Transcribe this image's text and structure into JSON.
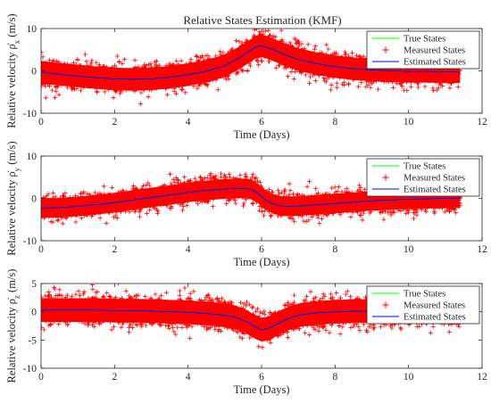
{
  "figure_title": "Relative States Estimation (KMF)",
  "chart_data": [
    {
      "type": "line",
      "title": "Relative States Estimation (KMF)",
      "xlabel": "Time (Days)",
      "ylabel_prefix": "Relative velocity ",
      "ylabel_symbol": "ρ̇",
      "ylabel_sub": "x",
      "ylabel_suffix": " (m/s)",
      "xlim": [
        0,
        12
      ],
      "ylim": [
        -10,
        10
      ],
      "xticks": [
        0,
        2,
        4,
        6,
        8,
        10,
        12
      ],
      "yticks": [
        -10,
        0,
        10
      ],
      "grid": false,
      "legend_position": "top-right",
      "noise_halfwidth": 3.8,
      "x_range": [
        0,
        11.4
      ],
      "series": [
        {
          "name": "True States",
          "color": "#00ff00",
          "style": "line"
        },
        {
          "name": "Measured States",
          "color": "#ff0000",
          "style": "plus-markers"
        },
        {
          "name": "Estimated States",
          "color": "#0000ff",
          "style": "line",
          "x": [
            0,
            0.5,
            1,
            1.5,
            2,
            2.5,
            3,
            3.5,
            4,
            4.5,
            5,
            5.3,
            5.6,
            5.8,
            5.95,
            6.1,
            6.4,
            6.7,
            7,
            7.5,
            8,
            8.5,
            9,
            9.5,
            10,
            10.5,
            11,
            11.4
          ],
          "y": [
            -0.3,
            -0.8,
            -1.2,
            -1.6,
            -1.9,
            -2.0,
            -1.9,
            -1.5,
            -0.9,
            -0.1,
            1.2,
            2.6,
            4.2,
            5.4,
            6.0,
            5.7,
            4.7,
            3.6,
            2.7,
            1.7,
            1.0,
            0.5,
            0.2,
            0.0,
            -0.1,
            -0.1,
            -0.2,
            -0.2
          ]
        }
      ]
    },
    {
      "type": "line",
      "xlabel": "Time (Days)",
      "ylabel_prefix": "Relative velocity ",
      "ylabel_symbol": "ρ̇",
      "ylabel_sub": "y",
      "ylabel_suffix": " (m/s)",
      "xlim": [
        0,
        12
      ],
      "ylim": [
        -10,
        10
      ],
      "xticks": [
        0,
        2,
        4,
        6,
        8,
        10,
        12
      ],
      "yticks": [
        -10,
        0,
        10
      ],
      "grid": false,
      "legend_position": "top-right",
      "noise_halfwidth": 3.3,
      "x_range": [
        0,
        11.4
      ],
      "series": [
        {
          "name": "True States",
          "color": "#00ff00",
          "style": "line"
        },
        {
          "name": "Measured States",
          "color": "#ff0000",
          "style": "plus-markers"
        },
        {
          "name": "Estimated States",
          "color": "#0000ff",
          "style": "line",
          "x": [
            0,
            0.5,
            1,
            1.5,
            2,
            2.5,
            3,
            3.5,
            4,
            4.5,
            5,
            5.4,
            5.7,
            5.9,
            6.1,
            6.3,
            6.6,
            7,
            7.5,
            8,
            8.5,
            9,
            9.5,
            10,
            10.5,
            11,
            11.4
          ],
          "y": [
            -2.3,
            -2.2,
            -1.9,
            -1.5,
            -1.0,
            -0.4,
            0.2,
            0.8,
            1.4,
            1.9,
            2.2,
            2.4,
            2.2,
            1.2,
            -0.3,
            -1.3,
            -1.9,
            -1.8,
            -1.5,
            -1.2,
            -0.9,
            -0.6,
            -0.4,
            -0.2,
            -0.1,
            0.0,
            0.0
          ]
        }
      ]
    },
    {
      "type": "line",
      "xlabel": "Time (Days)",
      "ylabel_prefix": "Relative velocity ",
      "ylabel_symbol": "ρ̇",
      "ylabel_sub": "z",
      "ylabel_suffix": " (m/s)",
      "xlim": [
        0,
        12
      ],
      "ylim": [
        -10,
        5
      ],
      "xticks": [
        0,
        2,
        4,
        6,
        8,
        10,
        12
      ],
      "yticks": [
        -10,
        -5,
        0,
        5
      ],
      "grid": false,
      "legend_position": "top-right",
      "noise_halfwidth": 3.0,
      "x_range": [
        0,
        11.4
      ],
      "series": [
        {
          "name": "True States",
          "color": "#00ff00",
          "style": "line"
        },
        {
          "name": "Measured States",
          "color": "#ff0000",
          "style": "plus-markers"
        },
        {
          "name": "Estimated States",
          "color": "#0000ff",
          "style": "line",
          "x": [
            0,
            0.5,
            1,
            1.5,
            2,
            2.5,
            3,
            3.5,
            4,
            4.5,
            5,
            5.3,
            5.6,
            5.8,
            6.0,
            6.2,
            6.5,
            6.8,
            7.1,
            7.5,
            8,
            8.5,
            9,
            9.5,
            10,
            10.5,
            11,
            11.4
          ],
          "y": [
            0.3,
            0.3,
            0.3,
            0.3,
            0.2,
            0.2,
            0.1,
            0.0,
            -0.1,
            -0.3,
            -0.6,
            -1.0,
            -1.8,
            -2.6,
            -3.2,
            -2.9,
            -1.9,
            -1.0,
            -0.5,
            -0.2,
            0.0,
            0.1,
            0.1,
            0.2,
            0.2,
            0.2,
            0.2,
            0.2
          ]
        }
      ]
    }
  ]
}
